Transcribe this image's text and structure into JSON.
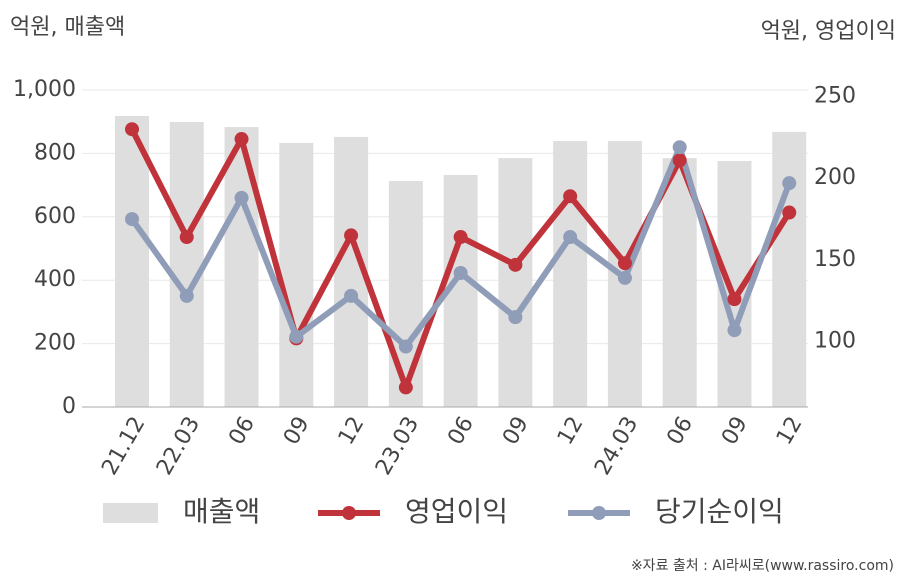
{
  "chart_data": {
    "type": "bar",
    "y_unit_label": "억원, 매출액",
    "y2_unit_label": "억원, 영업이익",
    "source": "※자료 출처 : AI라씨로(www.rassiro.com)",
    "categories": [
      "21.12",
      "22.03",
      "06",
      "09",
      "12",
      "23.03",
      "06",
      "09",
      "12",
      "24.03",
      "06",
      "09",
      "12"
    ],
    "ylim": [
      0,
      1000
    ],
    "yticks": [
      0,
      200,
      400,
      600,
      800,
      {
        "value": 1000,
        "label": "1,000"
      }
    ],
    "y2lim": [
      60,
      254
    ],
    "y2ticks": [
      100,
      150,
      200,
      250
    ],
    "grid": true,
    "series": [
      {
        "name": "매출액",
        "type": "bar",
        "color": "#dedede",
        "values": [
          918,
          899,
          883,
          833,
          852,
          713,
          732,
          785,
          839,
          839,
          785,
          776,
          868
        ]
      },
      {
        "name": "영업이익",
        "type": "line",
        "axis": "y2",
        "color": "#c0333a",
        "values": [
          230,
          164,
          224,
          102,
          165,
          72,
          164,
          147,
          189,
          148,
          211,
          126,
          179
        ]
      },
      {
        "name": "당기순이익",
        "type": "line",
        "axis": "y2",
        "color": "#8f9db8",
        "values": [
          175,
          128,
          188,
          103,
          128,
          97,
          142,
          115,
          164,
          139,
          219,
          107,
          197
        ]
      }
    ]
  }
}
